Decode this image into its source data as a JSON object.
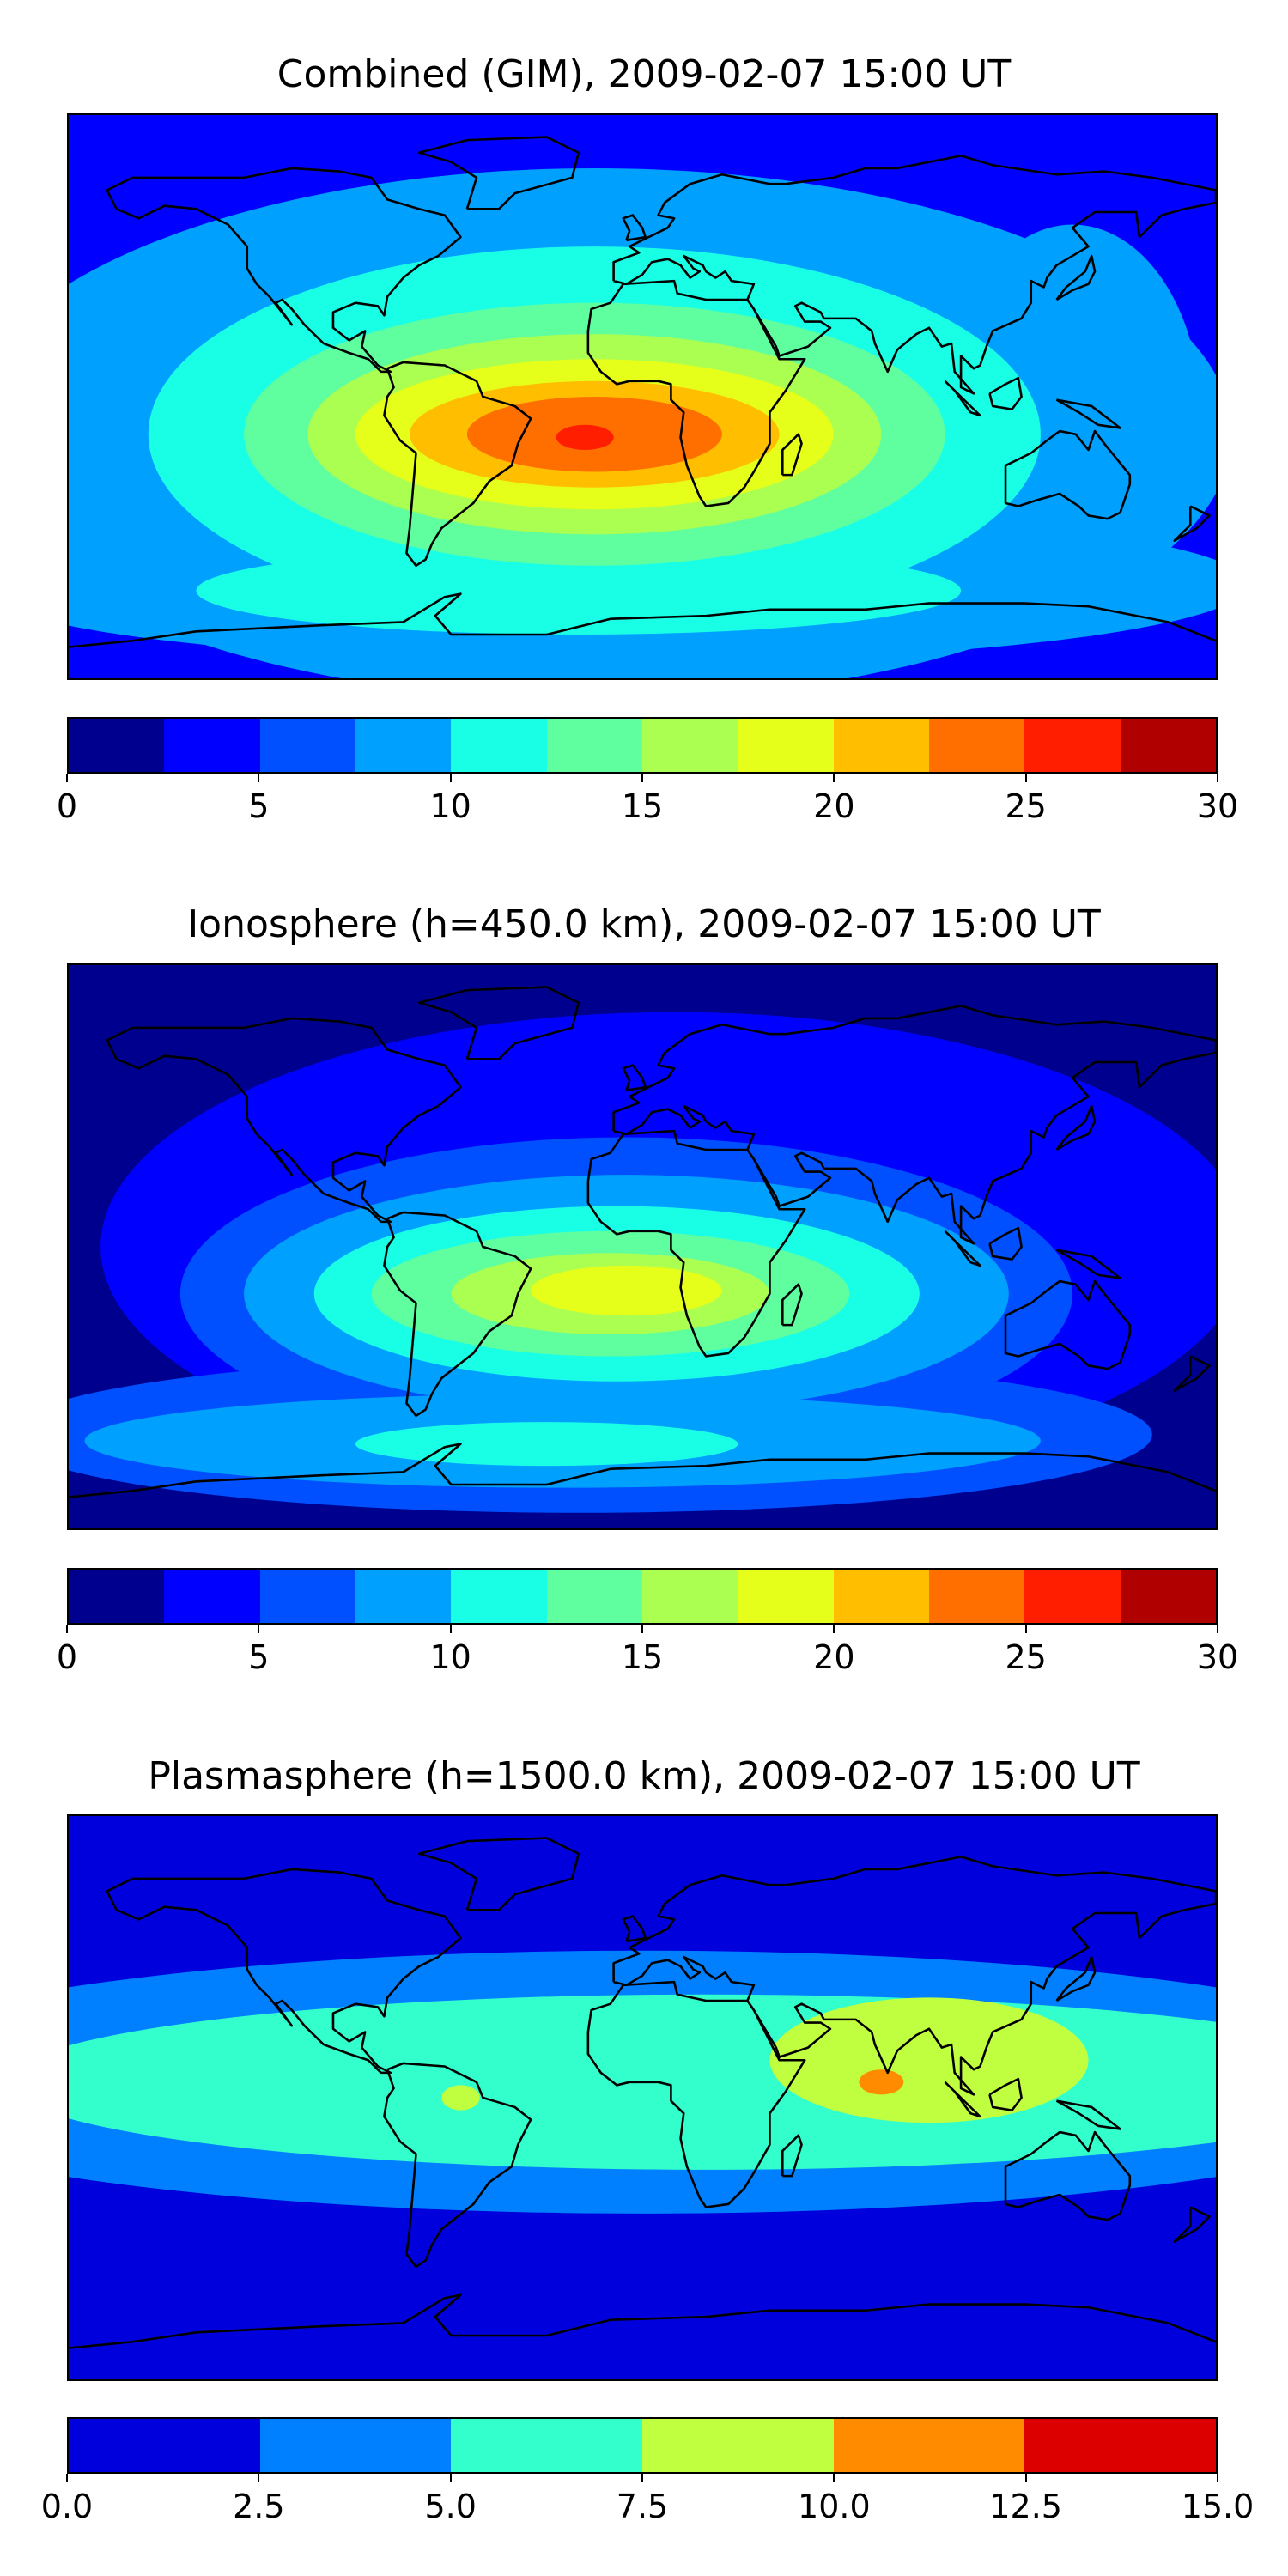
{
  "panels": [
    {
      "title": "Combined (GIM), 2009-02-07 15:00 UT",
      "colorbar": {
        "min": 0,
        "max": 30,
        "colors": [
          "#00008f",
          "#0000ff",
          "#0050ff",
          "#00a0ff",
          "#19ffe6",
          "#5fffa0",
          "#aaff50",
          "#e6ff1a",
          "#ffbf00",
          "#ff6f00",
          "#ff1f00",
          "#b00000"
        ],
        "ticks": [
          "0",
          "5",
          "10",
          "15",
          "20",
          "25",
          "30"
        ]
      },
      "field": {
        "background_level": 1,
        "blobs": [
          {
            "lon": -15,
            "lat": -12,
            "rx": 200,
            "ry": 85,
            "level": 3
          },
          {
            "lon": 135,
            "lat": -5,
            "rx": 40,
            "ry": 60,
            "level": 3
          },
          {
            "lon": -10,
            "lat": -60,
            "rx": 200,
            "ry": 25,
            "level": 3
          },
          {
            "lon": -15,
            "lat": -12,
            "rx": 140,
            "ry": 60,
            "level": 4
          },
          {
            "lon": -20,
            "lat": -62,
            "rx": 120,
            "ry": 14,
            "level": 4
          },
          {
            "lon": -15,
            "lat": -12,
            "rx": 110,
            "ry": 42,
            "level": 5
          },
          {
            "lon": -15,
            "lat": -12,
            "rx": 90,
            "ry": 32,
            "level": 6
          },
          {
            "lon": -15,
            "lat": -12,
            "rx": 75,
            "ry": 24,
            "level": 7
          },
          {
            "lon": -15,
            "lat": -12,
            "rx": 58,
            "ry": 17,
            "level": 8
          },
          {
            "lon": -15,
            "lat": -12,
            "rx": 40,
            "ry": 12,
            "level": 9
          },
          {
            "lon": -18,
            "lat": -13,
            "rx": 9,
            "ry": 4,
            "level": 10
          }
        ]
      }
    },
    {
      "title": "Ionosphere  (h=450.0 km), 2009-02-07 15:00 UT",
      "colorbar": {
        "min": 0,
        "max": 30,
        "colors": [
          "#00008f",
          "#0000ff",
          "#0050ff",
          "#00a0ff",
          "#19ffe6",
          "#5fffa0",
          "#aaff50",
          "#e6ff1a",
          "#ffbf00",
          "#ff6f00",
          "#ff1f00",
          "#b00000"
        ],
        "ticks": [
          "0",
          "5",
          "10",
          "15",
          "20",
          "25",
          "30"
        ]
      },
      "field": {
        "background_level": 0,
        "blobs": [
          {
            "lon": 10,
            "lat": 0,
            "rx": 180,
            "ry": 75,
            "level": 1
          },
          {
            "lon": -5,
            "lat": -15,
            "rx": 140,
            "ry": 50,
            "level": 2
          },
          {
            "lon": -20,
            "lat": -60,
            "rx": 180,
            "ry": 25,
            "level": 2
          },
          {
            "lon": -5,
            "lat": -15,
            "rx": 120,
            "ry": 38,
            "level": 3
          },
          {
            "lon": -25,
            "lat": -62,
            "rx": 150,
            "ry": 15,
            "level": 3
          },
          {
            "lon": -8,
            "lat": -15,
            "rx": 95,
            "ry": 28,
            "level": 4
          },
          {
            "lon": -30,
            "lat": -63,
            "rx": 60,
            "ry": 7,
            "level": 4
          },
          {
            "lon": -10,
            "lat": -15,
            "rx": 75,
            "ry": 20,
            "level": 5
          },
          {
            "lon": -10,
            "lat": -15,
            "rx": 50,
            "ry": 13,
            "level": 6
          },
          {
            "lon": -5,
            "lat": -14,
            "rx": 30,
            "ry": 8,
            "level": 7
          }
        ]
      }
    },
    {
      "title": "Plasmasphere (h=1500.0 km), 2009-02-07 15:00 UT",
      "colorbar": {
        "min": 0,
        "max": 15,
        "colors": [
          "#0000dd",
          "#0080ff",
          "#33ffcc",
          "#c0ff40",
          "#ff8c00",
          "#dd0000"
        ],
        "ticks": [
          "0.0",
          "2.5",
          "5.0",
          "7.5",
          "10.0",
          "12.5",
          "15.0"
        ]
      },
      "field": {
        "background_level": 0,
        "blobs": [
          {
            "lon": 0,
            "lat": 5,
            "rx": 260,
            "ry": 42,
            "level": 1
          },
          {
            "lon": 20,
            "lat": 5,
            "rx": 220,
            "ry": 28,
            "level": 2
          },
          {
            "lon": 90,
            "lat": 12,
            "rx": 50,
            "ry": 20,
            "level": 3
          },
          {
            "lon": -57,
            "lat": 0,
            "rx": 6,
            "ry": 4,
            "level": 3
          },
          {
            "lon": 75,
            "lat": 5,
            "rx": 7,
            "ry": 4,
            "level": 4
          }
        ]
      }
    }
  ]
}
